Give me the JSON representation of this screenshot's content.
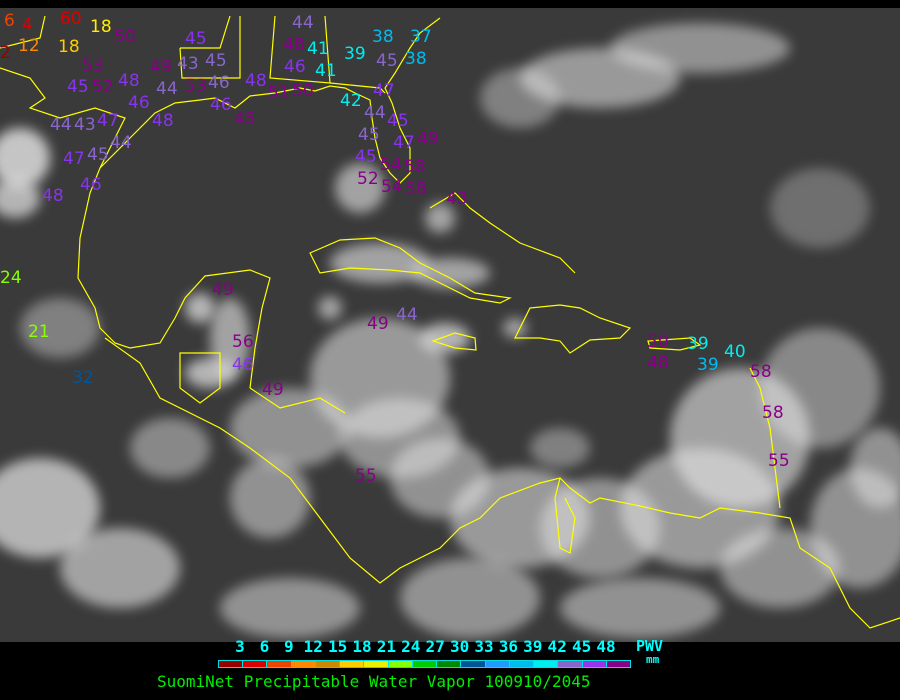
{
  "title": "SuomiNet Precipitable Water Vapor 100910/2045",
  "legend": {
    "units_label": "PWV",
    "units_sub": "mm",
    "ticks": [
      "3",
      "6",
      "9",
      "12",
      "15",
      "18",
      "21",
      "24",
      "27",
      "30",
      "33",
      "36",
      "39",
      "42",
      "45",
      "48"
    ],
    "colors": [
      "#990000",
      "#dd0000",
      "#ee4400",
      "#ff8800",
      "#cc8800",
      "#ffcc00",
      "#eeee00",
      "#88ff00",
      "#00cc00",
      "#008800",
      "#005599",
      "#2299ff",
      "#00bbee",
      "#00eeee",
      "#8866cc",
      "#9933ee",
      "#880088"
    ]
  },
  "map": {
    "background": "#3a3a3a",
    "coastline_color": "#ffff00",
    "stations": [
      {
        "value": "6",
        "color": "#ee4400"
      },
      {
        "value": "4",
        "color": "#dd0000"
      },
      {
        "value": "2",
        "color": "#990000"
      },
      {
        "value": "12",
        "color": "#ff8800"
      },
      {
        "value": "60",
        "color": "#dd0000"
      },
      {
        "value": "18",
        "color": "#ffee00"
      },
      {
        "value": "18",
        "color": "#ffcc00"
      },
      {
        "value": "50",
        "color": "#880088"
      },
      {
        "value": "45",
        "color": "#8833ee"
      },
      {
        "value": "53",
        "color": "#880088"
      },
      {
        "value": "52",
        "color": "#880088"
      },
      {
        "value": "45",
        "color": "#8833ee"
      },
      {
        "value": "48",
        "color": "#8833ee"
      },
      {
        "value": "46",
        "color": "#8833ee"
      },
      {
        "value": "49",
        "color": "#880088"
      },
      {
        "value": "43",
        "color": "#8866cc"
      },
      {
        "value": "45",
        "color": "#8866cc"
      },
      {
        "value": "44",
        "color": "#8866cc"
      },
      {
        "value": "53",
        "color": "#880088"
      },
      {
        "value": "46",
        "color": "#8866cc"
      },
      {
        "value": "48",
        "color": "#8833ee"
      },
      {
        "value": "46",
        "color": "#8833ee"
      },
      {
        "value": "44",
        "color": "#8866cc"
      },
      {
        "value": "43",
        "color": "#8866cc"
      },
      {
        "value": "47",
        "color": "#8833ee"
      },
      {
        "value": "44",
        "color": "#8866cc"
      },
      {
        "value": "47",
        "color": "#8833ee"
      },
      {
        "value": "45",
        "color": "#8866cc"
      },
      {
        "value": "46",
        "color": "#8833ee"
      },
      {
        "value": "48",
        "color": "#8833ee"
      },
      {
        "value": "48",
        "color": "#8833ee"
      },
      {
        "value": "45",
        "color": "#880088"
      },
      {
        "value": "51",
        "color": "#880088"
      },
      {
        "value": "50",
        "color": "#880088"
      },
      {
        "value": "48",
        "color": "#880088"
      },
      {
        "value": "44",
        "color": "#8866cc"
      },
      {
        "value": "41",
        "color": "#00eeee"
      },
      {
        "value": "46",
        "color": "#8833ee"
      },
      {
        "value": "41",
        "color": "#00eeee"
      },
      {
        "value": "39",
        "color": "#00eeee"
      },
      {
        "value": "38",
        "color": "#00bbee"
      },
      {
        "value": "37",
        "color": "#00bbee"
      },
      {
        "value": "38",
        "color": "#00bbee"
      },
      {
        "value": "45",
        "color": "#8866cc"
      },
      {
        "value": "47",
        "color": "#8833ee"
      },
      {
        "value": "42",
        "color": "#00eeee"
      },
      {
        "value": "44",
        "color": "#8866cc"
      },
      {
        "value": "45",
        "color": "#8866cc"
      },
      {
        "value": "45",
        "color": "#8833ee"
      },
      {
        "value": "47",
        "color": "#8833ee"
      },
      {
        "value": "49",
        "color": "#880088"
      },
      {
        "value": "45",
        "color": "#8833ee"
      },
      {
        "value": "54",
        "color": "#880088"
      },
      {
        "value": "52",
        "color": "#880088"
      },
      {
        "value": "58",
        "color": "#880088"
      },
      {
        "value": "54",
        "color": "#880088"
      },
      {
        "value": "58",
        "color": "#880088"
      },
      {
        "value": "43",
        "color": "#880088"
      },
      {
        "value": "49",
        "color": "#880088"
      },
      {
        "value": "56",
        "color": "#880088"
      },
      {
        "value": "46",
        "color": "#8833ee"
      },
      {
        "value": "49",
        "color": "#880088"
      },
      {
        "value": "24",
        "color": "#88ff00"
      },
      {
        "value": "21",
        "color": "#88ff00"
      },
      {
        "value": "32",
        "color": "#005599"
      },
      {
        "value": "49",
        "color": "#880088"
      },
      {
        "value": "44",
        "color": "#8866cc"
      },
      {
        "value": "55",
        "color": "#880088"
      },
      {
        "value": "50",
        "color": "#880088"
      },
      {
        "value": "48",
        "color": "#880088"
      },
      {
        "value": "39",
        "color": "#00eeee"
      },
      {
        "value": "39",
        "color": "#00bbee"
      },
      {
        "value": "40",
        "color": "#00eeee"
      },
      {
        "value": "58",
        "color": "#880088"
      },
      {
        "value": "58",
        "color": "#880088"
      },
      {
        "value": "55",
        "color": "#880088"
      }
    ]
  }
}
